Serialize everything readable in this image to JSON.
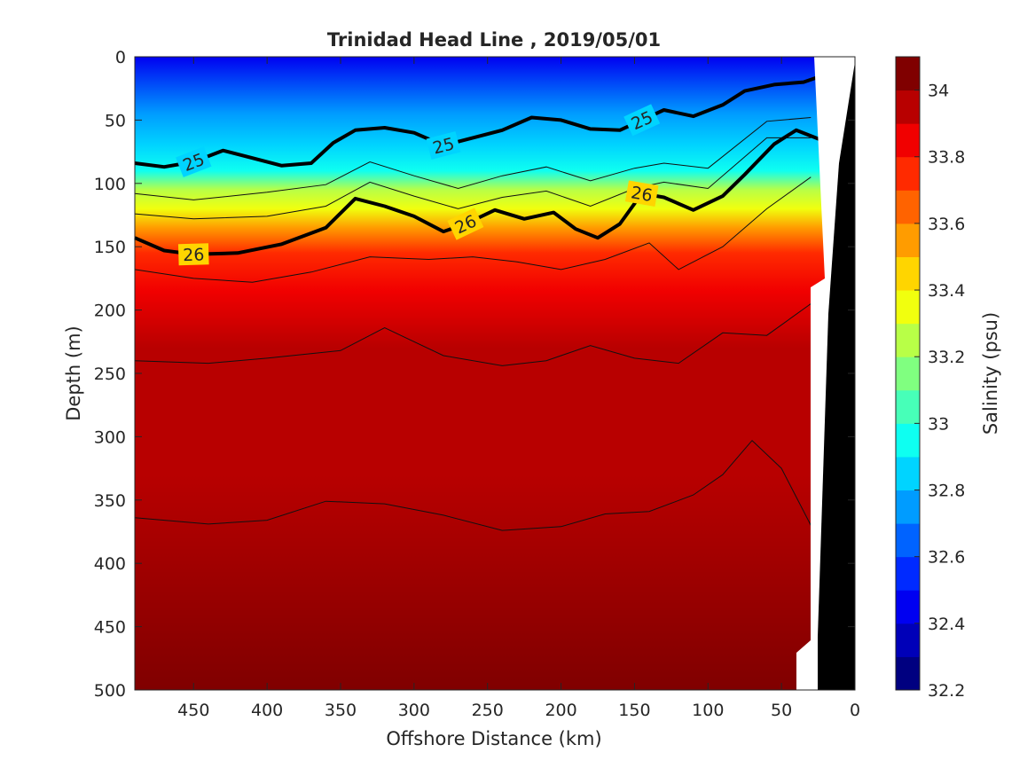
{
  "chart_data": {
    "type": "contour",
    "title": "Trinidad Head Line , 2019/05/01",
    "xlabel": "Offshore Distance (km)",
    "ylabel": "Depth (m)",
    "colorbar_label": "Salinity (psu)",
    "xlim": [
      490,
      0
    ],
    "ylim": [
      0,
      500
    ],
    "x_reversed": true,
    "y_reversed": true,
    "x_ticks": [
      450,
      400,
      350,
      300,
      250,
      200,
      150,
      100,
      50,
      0
    ],
    "y_ticks": [
      0,
      50,
      100,
      150,
      200,
      250,
      300,
      350,
      400,
      450,
      500
    ],
    "colorbar": {
      "range": [
        32.2,
        34.1
      ],
      "step": 0.1,
      "ticks": [
        32.2,
        32.4,
        32.6,
        32.8,
        33,
        33.2,
        33.4,
        33.6,
        33.8,
        34
      ],
      "colormap": "jet"
    },
    "density_contours": [
      {
        "label": "25",
        "points": [
          [
            490,
            84
          ],
          [
            470,
            87
          ],
          [
            450,
            83
          ],
          [
            430,
            74
          ],
          [
            410,
            80
          ],
          [
            390,
            86
          ],
          [
            370,
            84
          ],
          [
            355,
            68
          ],
          [
            340,
            58
          ],
          [
            320,
            56
          ],
          [
            300,
            60
          ],
          [
            280,
            70
          ],
          [
            260,
            64
          ],
          [
            240,
            58
          ],
          [
            220,
            48
          ],
          [
            200,
            50
          ],
          [
            180,
            57
          ],
          [
            160,
            58
          ],
          [
            145,
            50
          ],
          [
            130,
            42
          ],
          [
            110,
            47
          ],
          [
            90,
            38
          ],
          [
            75,
            27
          ],
          [
            55,
            22
          ],
          [
            35,
            20
          ],
          [
            20,
            14
          ]
        ]
      },
      {
        "label": "26",
        "points": [
          [
            490,
            143
          ],
          [
            470,
            153
          ],
          [
            450,
            156
          ],
          [
            420,
            155
          ],
          [
            390,
            148
          ],
          [
            360,
            135
          ],
          [
            340,
            112
          ],
          [
            320,
            118
          ],
          [
            300,
            126
          ],
          [
            280,
            138
          ],
          [
            265,
            132
          ],
          [
            245,
            121
          ],
          [
            225,
            128
          ],
          [
            205,
            123
          ],
          [
            190,
            136
          ],
          [
            175,
            143
          ],
          [
            160,
            132
          ],
          [
            145,
            108
          ],
          [
            130,
            111
          ],
          [
            110,
            121
          ],
          [
            90,
            110
          ],
          [
            75,
            93
          ],
          [
            55,
            69
          ],
          [
            40,
            58
          ],
          [
            20,
            67
          ]
        ]
      }
    ],
    "thin_contours": [
      {
        "points": [
          [
            490,
            108
          ],
          [
            450,
            113
          ],
          [
            400,
            107
          ],
          [
            360,
            101
          ],
          [
            330,
            83
          ],
          [
            300,
            94
          ],
          [
            270,
            104
          ],
          [
            240,
            94
          ],
          [
            210,
            87
          ],
          [
            180,
            98
          ],
          [
            150,
            88
          ],
          [
            130,
            84
          ],
          [
            100,
            88
          ],
          [
            60,
            51
          ],
          [
            30,
            48
          ]
        ]
      },
      {
        "points": [
          [
            490,
            124
          ],
          [
            450,
            128
          ],
          [
            400,
            126
          ],
          [
            360,
            118
          ],
          [
            330,
            99
          ],
          [
            300,
            110
          ],
          [
            270,
            120
          ],
          [
            240,
            111
          ],
          [
            210,
            106
          ],
          [
            180,
            118
          ],
          [
            150,
            104
          ],
          [
            130,
            99
          ],
          [
            100,
            104
          ],
          [
            60,
            64
          ],
          [
            30,
            64
          ]
        ]
      },
      {
        "points": [
          [
            490,
            168
          ],
          [
            450,
            175
          ],
          [
            410,
            178
          ],
          [
            370,
            170
          ],
          [
            330,
            158
          ],
          [
            290,
            160
          ],
          [
            260,
            158
          ],
          [
            230,
            162
          ],
          [
            200,
            168
          ],
          [
            170,
            160
          ],
          [
            140,
            147
          ],
          [
            120,
            168
          ],
          [
            90,
            150
          ],
          [
            60,
            120
          ],
          [
            30,
            95
          ]
        ]
      },
      {
        "points": [
          [
            490,
            240
          ],
          [
            440,
            242
          ],
          [
            400,
            238
          ],
          [
            350,
            232
          ],
          [
            320,
            214
          ],
          [
            280,
            236
          ],
          [
            240,
            244
          ],
          [
            210,
            240
          ],
          [
            180,
            228
          ],
          [
            150,
            238
          ],
          [
            120,
            242
          ],
          [
            90,
            218
          ],
          [
            60,
            220
          ],
          [
            30,
            195
          ]
        ]
      },
      {
        "points": [
          [
            490,
            364
          ],
          [
            440,
            369
          ],
          [
            400,
            366
          ],
          [
            360,
            351
          ],
          [
            320,
            353
          ],
          [
            280,
            362
          ],
          [
            240,
            374
          ],
          [
            200,
            371
          ],
          [
            170,
            361
          ],
          [
            140,
            359
          ],
          [
            110,
            346
          ],
          [
            90,
            330
          ],
          [
            70,
            303
          ],
          [
            50,
            325
          ],
          [
            30,
            370
          ]
        ]
      }
    ],
    "salinity_field": {
      "surface_fresh": [
        [
          490,
          32.45
        ],
        [
          450,
          32.35
        ],
        [
          400,
          32.45
        ],
        [
          350,
          32.65
        ],
        [
          300,
          32.75
        ],
        [
          250,
          32.75
        ],
        [
          200,
          32.6
        ],
        [
          150,
          32.5
        ],
        [
          100,
          32.45
        ],
        [
          50,
          32.55
        ]
      ],
      "deep_max": [
        [
          490,
          33.95
        ],
        [
          400,
          33.95
        ],
        [
          300,
          34.02
        ],
        [
          200,
          34.02
        ],
        [
          100,
          34.0
        ],
        [
          50,
          34.05
        ]
      ]
    }
  }
}
